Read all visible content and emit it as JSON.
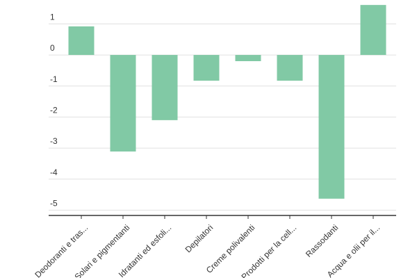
{
  "chart_data": {
    "type": "bar",
    "categories": [
      "Deodoranti e tras...",
      "Solari e pigmentanti",
      "Idratanti ed esfoli...",
      "Depilatori",
      "Creme polivalenti",
      "Prodotti per la cell...",
      "Rassodanti",
      "Acqua e olii per il..."
    ],
    "values": [
      0.92,
      -3.11,
      -2.1,
      -0.83,
      -0.2,
      -0.83,
      -4.63,
      1.61
    ],
    "color": "#81c9a5",
    "ylim": [
      -5.17,
      1.77
    ],
    "yticks": [
      -5,
      -4,
      -3,
      -2,
      -1,
      0,
      1
    ],
    "grid": true
  }
}
